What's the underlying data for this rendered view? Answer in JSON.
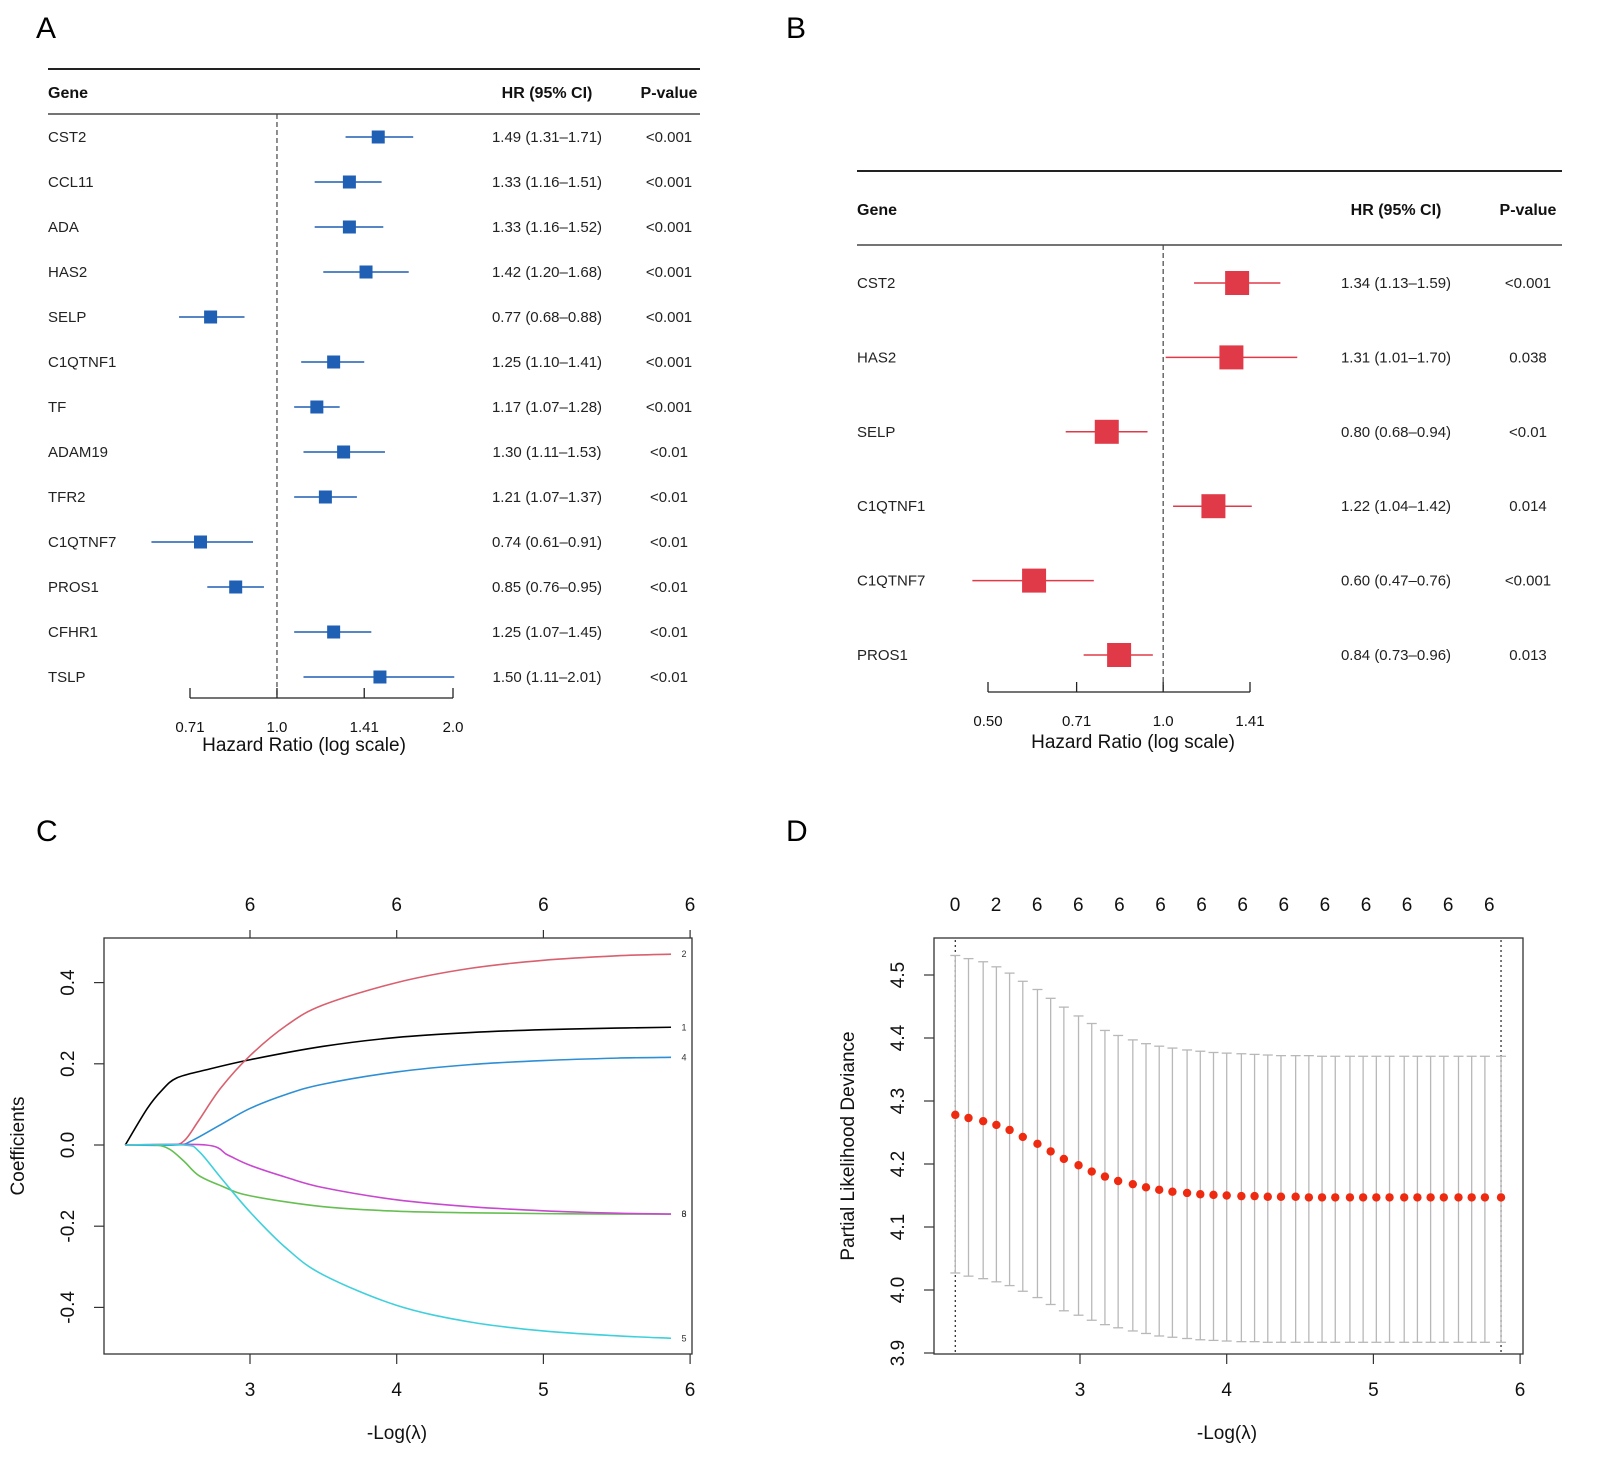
{
  "panels": {
    "A": "A",
    "B": "B",
    "C": "C",
    "D": "D"
  },
  "chart_data": [
    {
      "id": "A",
      "type": "forest",
      "headers": {
        "gene": "Gene",
        "hr": "HR (95% CI)",
        "p": "P-value"
      },
      "xlabel": "Hazard Ratio (log scale)",
      "xscale": "log",
      "ticks": [
        0.71,
        1.0,
        1.41,
        2.0
      ],
      "tick_labels": [
        "0.71",
        "1.0",
        "1.41",
        "2.0"
      ],
      "reference_line": 1.0,
      "color": "#1f5fb4",
      "rows": [
        {
          "gene": "CST2",
          "hr": 1.49,
          "lo": 1.31,
          "hi": 1.71,
          "hr_text": "1.49 (1.31–1.71)",
          "p": "<0.001"
        },
        {
          "gene": "CCL11",
          "hr": 1.33,
          "lo": 1.16,
          "hi": 1.51,
          "hr_text": "1.33 (1.16–1.51)",
          "p": "<0.001"
        },
        {
          "gene": "ADA",
          "hr": 1.33,
          "lo": 1.16,
          "hi": 1.52,
          "hr_text": "1.33 (1.16–1.52)",
          "p": "<0.001"
        },
        {
          "gene": "HAS2",
          "hr": 1.42,
          "lo": 1.2,
          "hi": 1.68,
          "hr_text": "1.42 (1.20–1.68)",
          "p": "<0.001"
        },
        {
          "gene": "SELP",
          "hr": 0.77,
          "lo": 0.68,
          "hi": 0.88,
          "hr_text": "0.77 (0.68–0.88)",
          "p": "<0.001"
        },
        {
          "gene": "C1QTNF1",
          "hr": 1.25,
          "lo": 1.1,
          "hi": 1.41,
          "hr_text": "1.25 (1.10–1.41)",
          "p": "<0.001"
        },
        {
          "gene": "TF",
          "hr": 1.17,
          "lo": 1.07,
          "hi": 1.28,
          "hr_text": "1.17 (1.07–1.28)",
          "p": "<0.001"
        },
        {
          "gene": "ADAM19",
          "hr": 1.3,
          "lo": 1.11,
          "hi": 1.53,
          "hr_text": "1.30 (1.11–1.53)",
          "p": "<0.01"
        },
        {
          "gene": "TFR2",
          "hr": 1.21,
          "lo": 1.07,
          "hi": 1.37,
          "hr_text": "1.21 (1.07–1.37)",
          "p": "<0.01"
        },
        {
          "gene": "C1QTNF7",
          "hr": 0.74,
          "lo": 0.61,
          "hi": 0.91,
          "hr_text": "0.74 (0.61–0.91)",
          "p": "<0.01"
        },
        {
          "gene": "PROS1",
          "hr": 0.85,
          "lo": 0.76,
          "hi": 0.95,
          "hr_text": "0.85 (0.76–0.95)",
          "p": "<0.01"
        },
        {
          "gene": "CFHR1",
          "hr": 1.25,
          "lo": 1.07,
          "hi": 1.45,
          "hr_text": "1.25 (1.07–1.45)",
          "p": "<0.01"
        },
        {
          "gene": "TSLP",
          "hr": 1.5,
          "lo": 1.11,
          "hi": 2.01,
          "hr_text": "1.50 (1.11–2.01)",
          "p": "<0.01"
        }
      ]
    },
    {
      "id": "B",
      "type": "forest",
      "headers": {
        "gene": "Gene",
        "hr": "HR (95% CI)",
        "p": "P-value"
      },
      "xlabel": "Hazard Ratio (log scale)",
      "xscale": "log",
      "ticks": [
        0.5,
        0.71,
        1.0,
        1.41
      ],
      "tick_labels": [
        "0.50",
        "0.71",
        "1.0",
        "1.41"
      ],
      "reference_line": 1.0,
      "color": "#e03a48",
      "rows": [
        {
          "gene": "CST2",
          "hr": 1.34,
          "lo": 1.13,
          "hi": 1.59,
          "hr_text": "1.34 (1.13–1.59)",
          "p": "<0.001"
        },
        {
          "gene": "HAS2",
          "hr": 1.31,
          "lo": 1.01,
          "hi": 1.7,
          "hr_text": "1.31 (1.01–1.70)",
          "p": "0.038"
        },
        {
          "gene": "SELP",
          "hr": 0.8,
          "lo": 0.68,
          "hi": 0.94,
          "hr_text": "0.80 (0.68–0.94)",
          "p": "<0.01"
        },
        {
          "gene": "C1QTNF1",
          "hr": 1.22,
          "lo": 1.04,
          "hi": 1.42,
          "hr_text": "1.22 (1.04–1.42)",
          "p": "0.014"
        },
        {
          "gene": "C1QTNF7",
          "hr": 0.6,
          "lo": 0.47,
          "hi": 0.76,
          "hr_text": "0.60 (0.47–0.76)",
          "p": "<0.001"
        },
        {
          "gene": "PROS1",
          "hr": 0.84,
          "lo": 0.73,
          "hi": 0.96,
          "hr_text": "0.84 (0.73–0.96)",
          "p": "0.013"
        }
      ]
    },
    {
      "id": "C",
      "type": "line",
      "title": "",
      "xlabel": "-Log(λ)",
      "ylabel": "Coefficients",
      "xlim": [
        2.0,
        6.0
      ],
      "ylim": [
        -0.52,
        0.51
      ],
      "x_ticks": [
        3,
        4,
        5,
        6
      ],
      "y_ticks": [
        -0.4,
        -0.2,
        0.0,
        0.2,
        0.4
      ],
      "y_tick_labels": [
        "-0.4",
        "-0.2",
        "0.0",
        "0.2",
        "0.4"
      ],
      "top_ticks": [
        3,
        4,
        5,
        6
      ],
      "top_labels": [
        "6",
        "6",
        "6",
        "6"
      ],
      "series": [
        {
          "name": "1",
          "color": "#000000",
          "x": [
            2.15,
            2.3,
            2.4,
            2.5,
            2.7,
            3.0,
            3.5,
            4.0,
            4.5,
            5.0,
            5.5,
            5.87
          ],
          "y": [
            0.0,
            0.09,
            0.135,
            0.165,
            0.185,
            0.21,
            0.243,
            0.265,
            0.277,
            0.284,
            0.288,
            0.29
          ]
        },
        {
          "name": "2",
          "color": "#d9606e",
          "x": [
            2.15,
            2.45,
            2.55,
            2.65,
            2.8,
            3.0,
            3.25,
            3.5,
            4.0,
            4.5,
            5.0,
            5.5,
            5.87
          ],
          "y": [
            0.0,
            0.0,
            0.01,
            0.06,
            0.14,
            0.22,
            0.295,
            0.345,
            0.4,
            0.435,
            0.455,
            0.466,
            0.47
          ]
        },
        {
          "name": "4",
          "color": "#2d8fd5",
          "x": [
            2.15,
            2.5,
            2.6,
            2.8,
            3.0,
            3.25,
            3.5,
            4.0,
            4.5,
            5.0,
            5.5,
            5.87
          ],
          "y": [
            0.0,
            0.0,
            0.01,
            0.05,
            0.09,
            0.125,
            0.15,
            0.18,
            0.198,
            0.208,
            0.214,
            0.216
          ]
        },
        {
          "name": "3",
          "color": "#66bf52",
          "x": [
            2.15,
            2.35,
            2.45,
            2.55,
            2.65,
            2.8,
            3.0,
            3.5,
            4.0,
            4.5,
            5.0,
            5.5,
            5.87
          ],
          "y": [
            0.0,
            0.0,
            -0.01,
            -0.04,
            -0.075,
            -0.1,
            -0.125,
            -0.152,
            -0.163,
            -0.167,
            -0.169,
            -0.17,
            -0.17
          ]
        },
        {
          "name": "6",
          "color": "#c848d0",
          "x": [
            2.15,
            2.7,
            2.85,
            3.0,
            3.25,
            3.5,
            4.0,
            4.5,
            5.0,
            5.5,
            5.87
          ],
          "y": [
            0.0,
            0.0,
            -0.025,
            -0.05,
            -0.08,
            -0.105,
            -0.135,
            -0.152,
            -0.162,
            -0.168,
            -0.17
          ]
        },
        {
          "name": "5",
          "color": "#3fd0dc",
          "x": [
            2.15,
            2.55,
            2.65,
            2.8,
            3.0,
            3.25,
            3.5,
            4.0,
            4.5,
            5.0,
            5.5,
            5.87
          ],
          "y": [
            0.0,
            0.0,
            -0.015,
            -0.08,
            -0.165,
            -0.255,
            -0.32,
            -0.395,
            -0.436,
            -0.458,
            -0.47,
            -0.476
          ]
        }
      ],
      "end_labels": [
        "2",
        "1",
        "4",
        "6",
        "5"
      ]
    },
    {
      "id": "D",
      "type": "scatter",
      "title": "",
      "xlabel": "-Log(λ)",
      "ylabel": "Partial Likelihood Deviance",
      "xlim": [
        2.0,
        6.0
      ],
      "ylim": [
        3.89,
        4.56
      ],
      "x_ticks": [
        3,
        4,
        5,
        6
      ],
      "y_ticks": [
        3.9,
        4.0,
        4.1,
        4.2,
        4.3,
        4.4,
        4.5
      ],
      "y_tick_labels": [
        "3.9",
        "4.0",
        "4.1",
        "4.2",
        "4.3",
        "4.4",
        "4.5"
      ],
      "top_labels": [
        "0",
        "2",
        "6",
        "6",
        "6",
        "6",
        "6",
        "6",
        "6",
        "6",
        "6",
        "6",
        "6",
        "6"
      ],
      "vlines": [
        2.15,
        5.87
      ],
      "point_color": "#ee2a10",
      "errorbar_color": "#b8b8b8",
      "x": [
        2.15,
        2.24,
        2.34,
        2.43,
        2.52,
        2.61,
        2.71,
        2.8,
        2.89,
        2.99,
        3.08,
        3.17,
        3.26,
        3.36,
        3.45,
        3.54,
        3.63,
        3.73,
        3.82,
        3.91,
        4.0,
        4.1,
        4.19,
        4.28,
        4.37,
        4.47,
        4.56,
        4.65,
        4.74,
        4.84,
        4.93,
        5.02,
        5.11,
        5.21,
        5.3,
        5.39,
        5.48,
        5.58,
        5.67,
        5.76,
        5.87
      ],
      "y": [
        4.278,
        4.273,
        4.268,
        4.262,
        4.254,
        4.243,
        4.232,
        4.22,
        4.208,
        4.198,
        4.188,
        4.18,
        4.173,
        4.168,
        4.163,
        4.159,
        4.156,
        4.154,
        4.152,
        4.151,
        4.15,
        4.149,
        4.149,
        4.148,
        4.148,
        4.148,
        4.147,
        4.147,
        4.147,
        4.147,
        4.147,
        4.147,
        4.147,
        4.147,
        4.147,
        4.147,
        4.147,
        4.147,
        4.147,
        4.147,
        4.147
      ],
      "upper": [
        4.531,
        4.526,
        4.521,
        4.513,
        4.503,
        4.49,
        4.477,
        4.463,
        4.449,
        4.435,
        4.423,
        4.412,
        4.404,
        4.397,
        4.391,
        4.387,
        4.384,
        4.381,
        4.379,
        4.377,
        4.376,
        4.375,
        4.374,
        4.373,
        4.372,
        4.372,
        4.372,
        4.371,
        4.371,
        4.371,
        4.371,
        4.371,
        4.371,
        4.371,
        4.371,
        4.371,
        4.371,
        4.371,
        4.371,
        4.371,
        4.371
      ],
      "lower": [
        4.027,
        4.022,
        4.018,
        4.013,
        4.007,
        3.998,
        3.988,
        3.977,
        3.967,
        3.96,
        3.952,
        3.945,
        3.94,
        3.935,
        3.931,
        3.927,
        3.925,
        3.923,
        3.921,
        3.92,
        3.919,
        3.918,
        3.918,
        3.917,
        3.917,
        3.917,
        3.917,
        3.917,
        3.917,
        3.917,
        3.917,
        3.917,
        3.917,
        3.917,
        3.917,
        3.917,
        3.917,
        3.917,
        3.917,
        3.917,
        3.917
      ]
    }
  ]
}
